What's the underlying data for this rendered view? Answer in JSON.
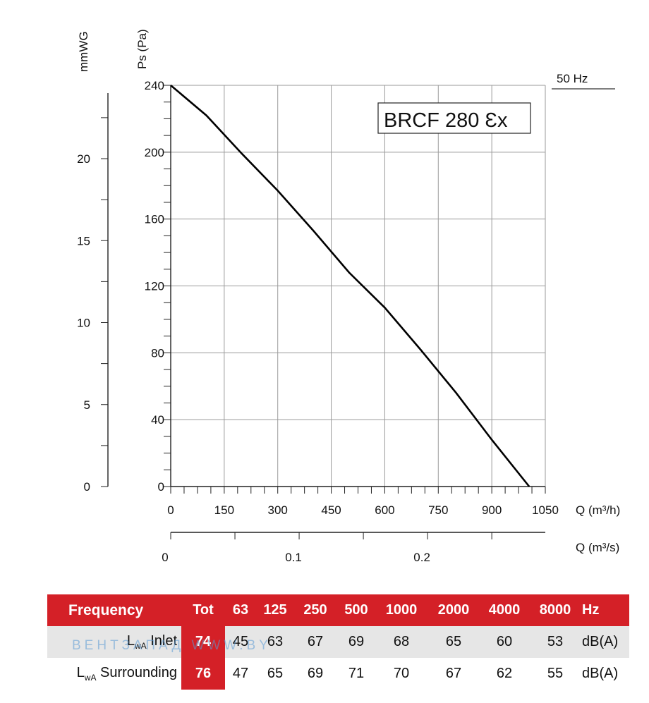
{
  "chart_data": {
    "type": "line",
    "frequency_label": "50 Hz",
    "model_label": "BRCF 280 Ɛx",
    "x_axis": {
      "label": "Q (m³/h)",
      "min": 0,
      "max": 1050,
      "ticks": [
        "0",
        "150",
        "300",
        "450",
        "600",
        "750",
        "900",
        "1050"
      ]
    },
    "x2_axis": {
      "label": "Q (m³/s)",
      "ticks": [
        {
          "value": 0,
          "label": "0"
        },
        {
          "value": 0.1,
          "label": "0.1"
        },
        {
          "value": 0.2,
          "label": "0.2"
        }
      ]
    },
    "y_axis": {
      "label": "Ps (Pa)",
      "min": 0,
      "max": 240,
      "ticks": [
        "0",
        "40",
        "80",
        "120",
        "160",
        "200",
        "240"
      ]
    },
    "y2_axis": {
      "label": "mmWG",
      "ticks": [
        {
          "value": 0,
          "label": "0"
        },
        {
          "value": 5,
          "label": "5"
        },
        {
          "value": 10,
          "label": "10"
        },
        {
          "value": 15,
          "label": "15"
        },
        {
          "value": 20,
          "label": "20"
        }
      ]
    },
    "grid": true,
    "series": [
      {
        "x": [
          0,
          100,
          200,
          300,
          400,
          500,
          600,
          700,
          800,
          900,
          1005
        ],
        "y": [
          240,
          222,
          199,
          177,
          153,
          128,
          107,
          82,
          56,
          28,
          0
        ]
      }
    ]
  },
  "table": {
    "header": [
      "Frequency",
      "Tot",
      "63",
      "125",
      "250",
      "500",
      "1000",
      "2000",
      "4000",
      "8000",
      "Hz"
    ],
    "rows": [
      {
        "main": "L",
        "sub": "wA",
        "rest": " Inlet",
        "values": [
          "74",
          "45",
          "63",
          "67",
          "69",
          "68",
          "65",
          "60",
          "53",
          "dB(A)"
        ]
      },
      {
        "main": "L",
        "sub": "wA",
        "rest": " Surrounding",
        "values": [
          "76",
          "47",
          "65",
          "69",
          "71",
          "70",
          "67",
          "62",
          "55",
          "dB(A)"
        ]
      }
    ]
  },
  "watermark": "ВЕНТЗАПАД  WWW.BY"
}
